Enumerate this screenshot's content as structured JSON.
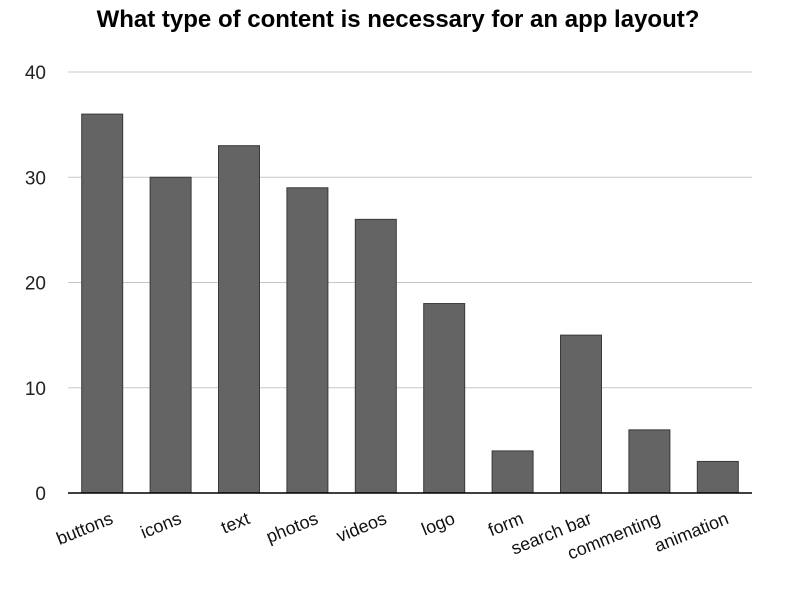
{
  "chart_data": {
    "type": "bar",
    "title": "What type of content is necessary for an app layout?",
    "xlabel": "",
    "ylabel": "",
    "categories": [
      "buttons",
      "icons",
      "text",
      "photos",
      "videos",
      "logo",
      "form",
      "search bar",
      "commenting",
      "animation"
    ],
    "values": [
      36,
      30,
      33,
      29,
      26,
      18,
      4,
      15,
      6,
      3
    ],
    "ylim": [
      0,
      40
    ],
    "yticks": [
      "0",
      "10",
      "20",
      "30",
      "40"
    ],
    "grid": true,
    "legend": "none",
    "colors": {
      "bar": "#646464",
      "bar_stroke": "#3a3a3a",
      "grid": "#c8c8c8",
      "axis": "#000000"
    }
  }
}
